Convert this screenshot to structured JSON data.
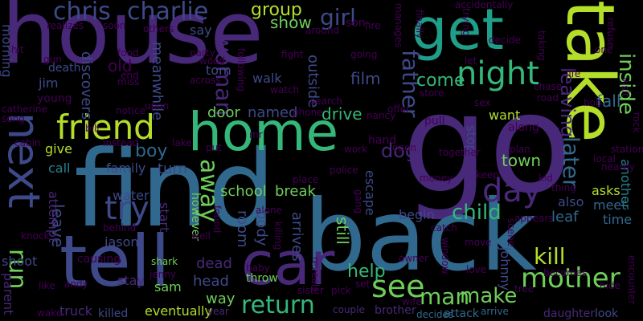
{
  "palette": {
    "background": "#000000",
    "c1": "#440154",
    "c2": "#482878",
    "c3": "#3e4989",
    "c4": "#31688e",
    "c5": "#26828e",
    "c6": "#1f9e89",
    "c7": "#35b779",
    "c8": "#6ece58",
    "c9": "#b5de2b"
  },
  "words": [
    {
      "text": "house",
      "color": "#482878",
      "orient": "h"
    },
    {
      "text": "find",
      "color": "#31688e",
      "orient": "h"
    },
    {
      "text": "go",
      "color": "#482878",
      "orient": "h"
    },
    {
      "text": "back",
      "color": "#31688e",
      "orient": "h"
    },
    {
      "text": "take",
      "color": "#b5de2b",
      "orient": "v"
    },
    {
      "text": "get",
      "color": "#1f9e89",
      "orient": "h"
    },
    {
      "text": "home",
      "color": "#35b779",
      "orient": "h"
    },
    {
      "text": "tell",
      "color": "#3e4989",
      "orient": "h"
    },
    {
      "text": "car",
      "color": "#482878",
      "orient": "h"
    },
    {
      "text": "next",
      "color": "#3e4989",
      "orient": "v"
    },
    {
      "text": "friend",
      "color": "#b5de2b",
      "orient": "h"
    },
    {
      "text": "night",
      "color": "#35b779",
      "orient": "h"
    },
    {
      "text": "see",
      "color": "#6ece58",
      "orient": "h"
    },
    {
      "text": "day",
      "color": "#482878",
      "orient": "h"
    },
    {
      "text": "try",
      "color": "#3e4989",
      "orient": "h"
    },
    {
      "text": "charlie",
      "color": "#3e4989",
      "orient": "h"
    },
    {
      "text": "chris",
      "color": "#3e4989",
      "orient": "h"
    },
    {
      "text": "mother",
      "color": "#6ece58",
      "orient": "h"
    },
    {
      "text": "man",
      "color": "#6ece58",
      "orient": "h"
    },
    {
      "text": "make",
      "color": "#6ece58",
      "orient": "h"
    },
    {
      "text": "return",
      "color": "#35b779",
      "orient": "h"
    },
    {
      "text": "run",
      "color": "#6ece58",
      "orient": "v"
    },
    {
      "text": "away",
      "color": "#6ece58",
      "orient": "v"
    },
    {
      "text": "child",
      "color": "#35b779",
      "orient": "h"
    },
    {
      "text": "kill",
      "color": "#b5de2b",
      "orient": "h"
    },
    {
      "text": "later",
      "color": "#31688e",
      "orient": "v"
    },
    {
      "text": "father",
      "color": "#3e4989",
      "orient": "v"
    },
    {
      "text": "come",
      "color": "#35b779",
      "orient": "h"
    },
    {
      "text": "group",
      "color": "#b5de2b",
      "orient": "h"
    },
    {
      "text": "girl",
      "color": "#3e4989",
      "orient": "h"
    },
    {
      "text": "woman",
      "color": "#482878",
      "orient": "v"
    },
    {
      "text": "dog",
      "color": "#482878",
      "orient": "h"
    },
    {
      "text": "help",
      "color": "#35b779",
      "orient": "h"
    },
    {
      "text": "boy",
      "color": "#31688e",
      "orient": "h"
    },
    {
      "text": "town",
      "color": "#6ece58",
      "orient": "h"
    },
    {
      "text": "inside",
      "color": "#6ece58",
      "orient": "v"
    },
    {
      "text": "leaving",
      "color": "#482878",
      "orient": "v"
    },
    {
      "text": "fall",
      "color": "#31688e",
      "orient": "h"
    },
    {
      "text": "film",
      "color": "#3e4989",
      "orient": "h"
    },
    {
      "text": "drive",
      "color": "#35b779",
      "orient": "h"
    },
    {
      "text": "show",
      "color": "#6ece58",
      "orient": "h"
    },
    {
      "text": "school",
      "color": "#6ece58",
      "orient": "h"
    },
    {
      "text": "break",
      "color": "#6ece58",
      "orient": "h"
    },
    {
      "text": "door",
      "color": "#6ece58",
      "orient": "h"
    },
    {
      "text": "named",
      "color": "#3e4989",
      "orient": "h"
    },
    {
      "text": "leave",
      "color": "#3e4989",
      "orient": "v"
    },
    {
      "text": "stop",
      "color": "#3e4989",
      "orient": "v"
    },
    {
      "text": "still",
      "color": "#6ece58",
      "orient": "v"
    },
    {
      "text": "room",
      "color": "#3e4989",
      "orient": "v"
    },
    {
      "text": "body",
      "color": "#3e4989",
      "orient": "v"
    },
    {
      "text": "arrives",
      "color": "#3e4989",
      "orient": "v"
    },
    {
      "text": "family",
      "color": "#3e4989",
      "orient": "h"
    },
    {
      "text": "turn",
      "color": "#3e4989",
      "orient": "h"
    },
    {
      "text": "water",
      "color": "#3e4989",
      "orient": "h"
    },
    {
      "text": "call",
      "color": "#26828e",
      "orient": "h"
    },
    {
      "text": "give",
      "color": "#b5de2b",
      "orient": "h"
    },
    {
      "text": "say",
      "color": "#3e4989",
      "orient": "h"
    },
    {
      "text": "old",
      "color": "#440154",
      "orient": "h"
    },
    {
      "text": "tom",
      "color": "#3e4989",
      "orient": "h"
    },
    {
      "text": "jim",
      "color": "#3e4989",
      "orient": "h"
    },
    {
      "text": "walk",
      "color": "#3e4989",
      "orient": "h"
    },
    {
      "text": "outside",
      "color": "#3e4989",
      "orient": "v"
    },
    {
      "text": "discovers",
      "color": "#3e4989",
      "orient": "v"
    },
    {
      "text": "meanwhile",
      "color": "#3e4989",
      "orient": "v"
    },
    {
      "text": "morning",
      "color": "#3e4989",
      "orient": "v"
    },
    {
      "text": "death",
      "color": "#3e4989",
      "orient": "h"
    },
    {
      "text": "want",
      "color": "#b5de2b",
      "orient": "h"
    },
    {
      "text": "begin",
      "color": "#3e4989",
      "orient": "h"
    },
    {
      "text": "also",
      "color": "#3e4989",
      "orient": "h"
    },
    {
      "text": "leaf",
      "color": "#31688e",
      "orient": "h"
    },
    {
      "text": "meet",
      "color": "#31688e",
      "orient": "h"
    },
    {
      "text": "time",
      "color": "#31688e",
      "orient": "h"
    },
    {
      "text": "asks",
      "color": "#b5de2b",
      "orient": "h"
    },
    {
      "text": "escape",
      "color": "#3e4989",
      "orient": "v"
    },
    {
      "text": "jason",
      "color": "#3e4989",
      "orient": "h"
    },
    {
      "text": "shoot",
      "color": "#3e4989",
      "orient": "h"
    },
    {
      "text": "dead",
      "color": "#482878",
      "orient": "h"
    },
    {
      "text": "head",
      "color": "#3e4989",
      "orient": "h"
    },
    {
      "text": "way",
      "color": "#6ece58",
      "orient": "h"
    },
    {
      "text": "sam",
      "color": "#6ece58",
      "orient": "h"
    },
    {
      "text": "stay",
      "color": "#482878",
      "orient": "h"
    },
    {
      "text": "start",
      "color": "#482878",
      "orient": "v"
    },
    {
      "text": "attempt",
      "color": "#482878",
      "orient": "v"
    },
    {
      "text": "parent",
      "color": "#482878",
      "orient": "v"
    },
    {
      "text": "truck",
      "color": "#482878",
      "orient": "h"
    },
    {
      "text": "killed",
      "color": "#3e4989",
      "orient": "h"
    },
    {
      "text": "eventually",
      "color": "#b5de2b",
      "orient": "h"
    },
    {
      "text": "johnny",
      "color": "#3e4989",
      "orient": "v"
    },
    {
      "text": "however",
      "color": "#6ece58",
      "orient": "v"
    },
    {
      "text": "another",
      "color": "#26828e",
      "orient": "v"
    },
    {
      "text": "throw",
      "color": "#6ece58",
      "orient": "h"
    },
    {
      "text": "look",
      "color": "#3e4989",
      "orient": "h"
    },
    {
      "text": "daughter",
      "color": "#482878",
      "orient": "h"
    },
    {
      "text": "brother",
      "color": "#482878",
      "orient": "h"
    },
    {
      "text": "attack",
      "color": "#31688e",
      "orient": "h"
    },
    {
      "text": "arrive",
      "color": "#31688e",
      "orient": "h"
    },
    {
      "text": "decides",
      "color": "#31688e",
      "orient": "h"
    },
    {
      "text": "couple",
      "color": "#482878",
      "orient": "h"
    },
    {
      "text": "year",
      "color": "#482878",
      "orient": "h"
    },
    {
      "text": "causing",
      "color": "#440154",
      "orient": "h"
    },
    {
      "text": "jenny",
      "color": "#440154",
      "orient": "h"
    },
    {
      "text": "shark",
      "color": "#6ece58",
      "orient": "h"
    },
    {
      "text": "andy",
      "color": "#440154",
      "orient": "h"
    },
    {
      "text": "like",
      "color": "#440154",
      "orient": "h"
    },
    {
      "text": "wake",
      "color": "#440154",
      "orient": "h"
    },
    {
      "text": "knock",
      "color": "#440154",
      "orient": "h"
    },
    {
      "text": "sister",
      "color": "#440154",
      "orient": "h"
    },
    {
      "text": "pick",
      "color": "#440154",
      "orient": "h"
    },
    {
      "text": "set",
      "color": "#440154",
      "orient": "h"
    },
    {
      "text": "wife",
      "color": "#440154",
      "orient": "h"
    },
    {
      "text": "tree",
      "color": "#440154",
      "orient": "h"
    },
    {
      "text": "becomes",
      "color": "#440154",
      "orient": "h"
    },
    {
      "text": "hide",
      "color": "#440154",
      "orient": "h"
    },
    {
      "text": "encounter",
      "color": "#440154",
      "orient": "v"
    },
    {
      "text": "love",
      "color": "#440154",
      "orient": "h"
    },
    {
      "text": "move",
      "color": "#440154",
      "orient": "h"
    },
    {
      "text": "window",
      "color": "#440154",
      "orient": "v"
    },
    {
      "text": "owner",
      "color": "#440154",
      "orient": "h"
    },
    {
      "text": "catch",
      "color": "#440154",
      "orient": "h"
    },
    {
      "text": "scene",
      "color": "#440154",
      "orient": "v"
    },
    {
      "text": "appears",
      "color": "#440154",
      "orient": "h"
    },
    {
      "text": "kid",
      "color": "#440154",
      "orient": "h"
    },
    {
      "text": "thing",
      "color": "#440154",
      "orient": "h"
    },
    {
      "text": "nearby",
      "color": "#440154",
      "orient": "h"
    },
    {
      "text": "local",
      "color": "#440154",
      "orient": "h"
    },
    {
      "text": "station",
      "color": "#440154",
      "orient": "h"
    },
    {
      "text": "plan",
      "color": "#440154",
      "orient": "h"
    },
    {
      "text": "together",
      "color": "#440154",
      "orient": "h"
    },
    {
      "text": "keep",
      "color": "#440154",
      "orient": "h"
    },
    {
      "text": "money",
      "color": "#440154",
      "orient": "h"
    },
    {
      "text": "police",
      "color": "#440154",
      "orient": "h"
    },
    {
      "text": "work",
      "color": "#440154",
      "orient": "h"
    },
    {
      "text": "hand",
      "color": "#440154",
      "orient": "h"
    },
    {
      "text": "open",
      "color": "#440154",
      "orient": "h"
    },
    {
      "text": "pull",
      "color": "#440154",
      "orient": "h"
    },
    {
      "text": "nancy",
      "color": "#440154",
      "orient": "h"
    },
    {
      "text": "offer",
      "color": "#440154",
      "orient": "h"
    },
    {
      "text": "phone",
      "color": "#440154",
      "orient": "h"
    },
    {
      "text": "search",
      "color": "#440154",
      "orient": "h"
    },
    {
      "text": "store",
      "color": "#440154",
      "orient": "h"
    },
    {
      "text": "sex",
      "color": "#440154",
      "orient": "h"
    },
    {
      "text": "road",
      "color": "#440154",
      "orient": "h"
    },
    {
      "text": "chase",
      "color": "#440154",
      "orient": "h"
    },
    {
      "text": "bob",
      "color": "#440154",
      "orient": "h"
    },
    {
      "text": "visit",
      "color": "#440154",
      "orient": "v"
    },
    {
      "text": "life",
      "color": "#440154",
      "orient": "h"
    },
    {
      "text": "along",
      "color": "#440154",
      "orient": "h"
    },
    {
      "text": "one",
      "color": "#440154",
      "orient": "h"
    },
    {
      "text": "rock",
      "color": "#440154",
      "orient": "v"
    },
    {
      "text": "refuse",
      "color": "#440154",
      "orient": "v"
    },
    {
      "text": "taking",
      "color": "#440154",
      "orient": "v"
    },
    {
      "text": "decide",
      "color": "#440154",
      "orient": "h"
    },
    {
      "text": "trying",
      "color": "#440154",
      "orient": "v"
    },
    {
      "text": "let",
      "color": "#440154",
      "orient": "h"
    },
    {
      "text": "finally",
      "color": "#440154",
      "orient": "v"
    },
    {
      "text": "manages",
      "color": "#440154",
      "orient": "v"
    },
    {
      "text": "accidentally",
      "color": "#440154",
      "orient": "h"
    },
    {
      "text": "fire",
      "color": "#440154",
      "orient": "h"
    },
    {
      "text": "son",
      "color": "#440154",
      "orient": "h"
    },
    {
      "text": "around",
      "color": "#440154",
      "orient": "h"
    },
    {
      "text": "going",
      "color": "#440154",
      "orient": "h"
    },
    {
      "text": "fight",
      "color": "#440154",
      "orient": "h"
    },
    {
      "text": "following",
      "color": "#440154",
      "orient": "v"
    },
    {
      "text": "party",
      "color": "#440154",
      "orient": "h"
    },
    {
      "text": "wood",
      "color": "#440154",
      "orient": "h"
    },
    {
      "text": "across",
      "color": "#440154",
      "orient": "h"
    },
    {
      "text": "watch",
      "color": "#440154",
      "orient": "h"
    },
    {
      "text": "mr",
      "color": "#440154",
      "orient": "h"
    },
    {
      "text": "upon",
      "color": "#440154",
      "orient": "h"
    },
    {
      "text": "notice",
      "color": "#440154",
      "orient": "h"
    },
    {
      "text": "others",
      "color": "#440154",
      "orient": "h"
    },
    {
      "text": "soon",
      "color": "#440154",
      "orient": "h"
    },
    {
      "text": "realizes",
      "color": "#440154",
      "orient": "h"
    },
    {
      "text": "hit",
      "color": "#440154",
      "orient": "h"
    },
    {
      "text": "gun",
      "color": "#440154",
      "orient": "h"
    },
    {
      "text": "food",
      "color": "#440154",
      "orient": "h"
    },
    {
      "text": "end",
      "color": "#440154",
      "orient": "h"
    },
    {
      "text": "miss",
      "color": "#440154",
      "orient": "h"
    },
    {
      "text": "young",
      "color": "#440154",
      "orient": "h"
    },
    {
      "text": "catherine",
      "color": "#440154",
      "orient": "h"
    },
    {
      "text": "song",
      "color": "#440154",
      "orient": "h"
    },
    {
      "text": "bill",
      "color": "#440154",
      "orient": "h"
    },
    {
      "text": "instead",
      "color": "#440154",
      "orient": "h"
    },
    {
      "text": "cabin",
      "color": "#440154",
      "orient": "h"
    },
    {
      "text": "lake",
      "color": "#440154",
      "orient": "h"
    },
    {
      "text": "put",
      "color": "#440154",
      "orient": "h"
    },
    {
      "text": "behind",
      "color": "#440154",
      "orient": "h"
    },
    {
      "text": "well",
      "color": "#440154",
      "orient": "h"
    },
    {
      "text": "found",
      "color": "#440154",
      "orient": "v"
    },
    {
      "text": "alone",
      "color": "#440154",
      "orient": "h"
    },
    {
      "text": "killing",
      "color": "#440154",
      "orient": "v"
    },
    {
      "text": "baby",
      "color": "#440154",
      "orient": "h"
    },
    {
      "text": "reveals",
      "color": "#440154",
      "orient": "v"
    },
    {
      "text": "place",
      "color": "#440154",
      "orient": "h"
    },
    {
      "text": "gang",
      "color": "#440154",
      "orient": "v"
    }
  ]
}
